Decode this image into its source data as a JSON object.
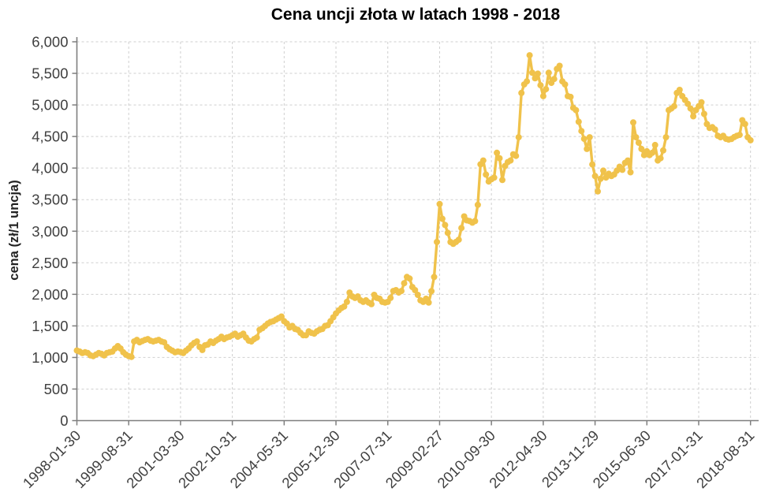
{
  "colors": {
    "line": "#F0C24B",
    "grid": "#CFCFCF",
    "axis": "#7F7F7F",
    "tick_text": "#404040",
    "title_text": "#000000",
    "background": "#FFFFFF"
  },
  "chart_data": {
    "type": "line",
    "title": "Cena uncji złota w latach 1998 - 2018",
    "xlabel": "",
    "ylabel": "cena (zł/1 uncja)",
    "ylim": [
      0,
      6000
    ],
    "y_tick_step": 500,
    "y_tick_labels": [
      "0",
      "500",
      "1,000",
      "1,500",
      "2,000",
      "2,500",
      "3,000",
      "3,500",
      "4,000",
      "4,500",
      "5,000",
      "5,500",
      "6,000"
    ],
    "x_tick_interval_months": 19,
    "x_tick_labels": [
      "1998-01-30",
      "1999-08-31",
      "2001-03-30",
      "2002-10-31",
      "2004-05-31",
      "2005-12-30",
      "2007-07-31",
      "2009-02-27",
      "2010-09-30",
      "2012-04-30",
      "2013-11-29",
      "2015-06-30",
      "2017-01-31",
      "2018-08-31"
    ],
    "grid": true,
    "legend": false,
    "marker": "circle",
    "series": [
      {
        "name": "cena uncji złota",
        "color": "#F0C24B",
        "frequency": "monthly",
        "x_start": "1998-01",
        "x_end": "2018-08",
        "values": [
          1110,
          1094,
          1070,
          1082,
          1070,
          1033,
          1021,
          1045,
          1070,
          1058,
          1033,
          1070,
          1082,
          1094,
          1143,
          1180,
          1143,
          1082,
          1045,
          1021,
          1009,
          1254,
          1279,
          1240,
          1260,
          1279,
          1291,
          1266,
          1254,
          1266,
          1279,
          1254,
          1240,
          1168,
          1131,
          1107,
          1082,
          1094,
          1086,
          1070,
          1107,
          1143,
          1193,
          1230,
          1254,
          1168,
          1119,
          1193,
          1205,
          1254,
          1230,
          1266,
          1291,
          1328,
          1291,
          1316,
          1328,
          1352,
          1377,
          1328,
          1352,
          1377,
          1316,
          1266,
          1254,
          1291,
          1316,
          1439,
          1464,
          1500,
          1537,
          1562,
          1574,
          1599,
          1623,
          1648,
          1574,
          1537,
          1475,
          1500,
          1451,
          1439,
          1390,
          1352,
          1352,
          1414,
          1390,
          1377,
          1414,
          1439,
          1451,
          1500,
          1512,
          1574,
          1636,
          1697,
          1746,
          1783,
          1807,
          1881,
          2028,
          1967,
          1943,
          1967,
          1906,
          1881,
          1906,
          1869,
          1844,
          1992,
          1943,
          1930,
          1881,
          1869,
          1881,
          1943,
          2053,
          2066,
          2028,
          2053,
          2176,
          2275,
          2250,
          2115,
          2066,
          1992,
          1906,
          1881,
          1930,
          1869,
          2050,
          2275,
          2830,
          3430,
          3197,
          3098,
          2975,
          2828,
          2800,
          2830,
          2865,
          3050,
          3234,
          3172,
          3160,
          3135,
          3160,
          3418,
          4060,
          4119,
          3897,
          3787,
          3824,
          3848,
          4242,
          4156,
          3811,
          4033,
          4095,
          4119,
          4218,
          4193,
          4488,
          5189,
          5324,
          5373,
          5787,
          5509,
          5422,
          5496,
          5312,
          5140,
          5250,
          5509,
          5349,
          5410,
          5570,
          5619,
          5373,
          5324,
          5140,
          5127,
          4955,
          4918,
          4734,
          4586,
          4463,
          4303,
          4488,
          4057,
          3873,
          3630,
          3830,
          3960,
          3850,
          3910,
          3873,
          3898,
          3960,
          4021,
          3972,
          4082,
          4119,
          3934,
          4722,
          4488,
          4402,
          4303,
          4205,
          4266,
          4205,
          4242,
          4365,
          4119,
          4156,
          4279,
          4488,
          4918,
          4943,
          4980,
          5189,
          5238,
          5140,
          5078,
          5017,
          4943,
          4820,
          4918,
          4980,
          5041,
          4857,
          4697,
          4635,
          4648,
          4611,
          4512,
          4488,
          4512,
          4463,
          4451,
          4460,
          4490,
          4512,
          4525,
          4758,
          4697,
          4488,
          4440
        ]
      }
    ]
  }
}
